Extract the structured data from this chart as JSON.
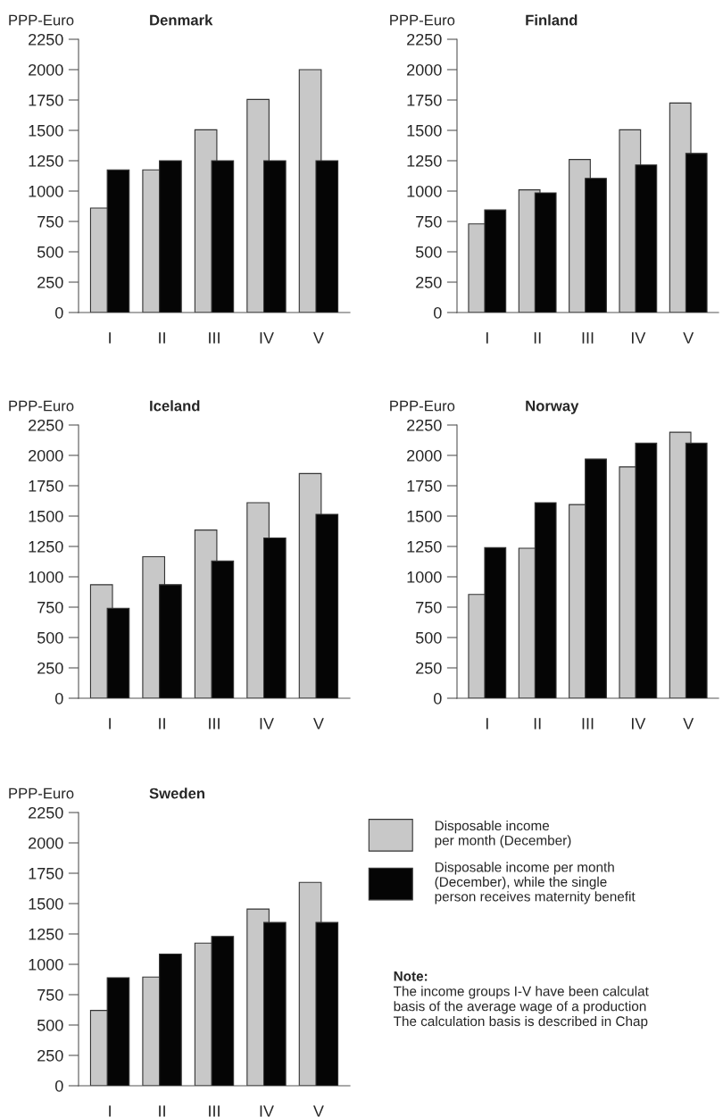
{
  "chart_data": [
    {
      "type": "bar",
      "title": "Denmark",
      "ylabel": "PPP-Euro",
      "categories": [
        "I",
        "II",
        "III",
        "IV",
        "V"
      ],
      "ylim": [
        0,
        2250
      ],
      "yticks": [
        0,
        250,
        500,
        750,
        1000,
        1250,
        1500,
        1750,
        2000,
        2250
      ],
      "grid": false,
      "series": [
        {
          "color": "#c8c8c8",
          "values": [
            860,
            1175,
            1505,
            1755,
            2000
          ]
        },
        {
          "color": "#050505",
          "values": [
            1175,
            1250,
            1250,
            1250,
            1250
          ]
        }
      ]
    },
    {
      "type": "bar",
      "title": "Finland",
      "ylabel": "PPP-Euro",
      "categories": [
        "I",
        "II",
        "III",
        "IV",
        "V"
      ],
      "ylim": [
        0,
        2250
      ],
      "yticks": [
        0,
        250,
        500,
        750,
        1000,
        1250,
        1500,
        1750,
        2000,
        2250
      ],
      "grid": false,
      "series": [
        {
          "color": "#c8c8c8",
          "values": [
            730,
            1010,
            1260,
            1505,
            1725
          ]
        },
        {
          "color": "#050505",
          "values": [
            845,
            985,
            1105,
            1215,
            1310
          ]
        }
      ]
    },
    {
      "type": "bar",
      "title": "Iceland",
      "ylabel": "PPP-Euro",
      "categories": [
        "I",
        "II",
        "III",
        "IV",
        "V"
      ],
      "ylim": [
        0,
        2250
      ],
      "yticks": [
        0,
        250,
        500,
        750,
        1000,
        1250,
        1500,
        1750,
        2000,
        2250
      ],
      "grid": false,
      "series": [
        {
          "color": "#c8c8c8",
          "values": [
            935,
            1165,
            1385,
            1610,
            1850
          ]
        },
        {
          "color": "#050505",
          "values": [
            740,
            935,
            1130,
            1320,
            1515
          ]
        }
      ]
    },
    {
      "type": "bar",
      "title": "Norway",
      "ylabel": "PPP-Euro",
      "categories": [
        "I",
        "II",
        "III",
        "IV",
        "V"
      ],
      "ylim": [
        0,
        2250
      ],
      "yticks": [
        0,
        250,
        500,
        750,
        1000,
        1250,
        1500,
        1750,
        2000,
        2250
      ],
      "grid": false,
      "series": [
        {
          "color": "#c8c8c8",
          "values": [
            855,
            1235,
            1595,
            1905,
            2190
          ]
        },
        {
          "color": "#050505",
          "values": [
            1240,
            1610,
            1970,
            2100,
            2100
          ]
        }
      ]
    },
    {
      "type": "bar",
      "title": "Sweden",
      "ylabel": "PPP-Euro",
      "categories": [
        "I",
        "II",
        "III",
        "IV",
        "V"
      ],
      "ylim": [
        0,
        2250
      ],
      "yticks": [
        0,
        250,
        500,
        750,
        1000,
        1250,
        1500,
        1750,
        2000,
        2250
      ],
      "grid": false,
      "legend": "right",
      "series": [
        {
          "name": "Disposable income\nper month (December)",
          "color": "#c8c8c8",
          "values": [
            620,
            895,
            1175,
            1455,
            1675
          ]
        },
        {
          "name": "Disposable income per month\n(December), while the single\nperson receives maternity benefit",
          "color": "#050505",
          "values": [
            890,
            1085,
            1230,
            1345,
            1345
          ]
        }
      ],
      "annotations": [
        "Note:",
        "The income groups I-V have been calculat",
        "basis of the average wage of a production",
        "The calculation basis is described in Chap"
      ]
    }
  ]
}
